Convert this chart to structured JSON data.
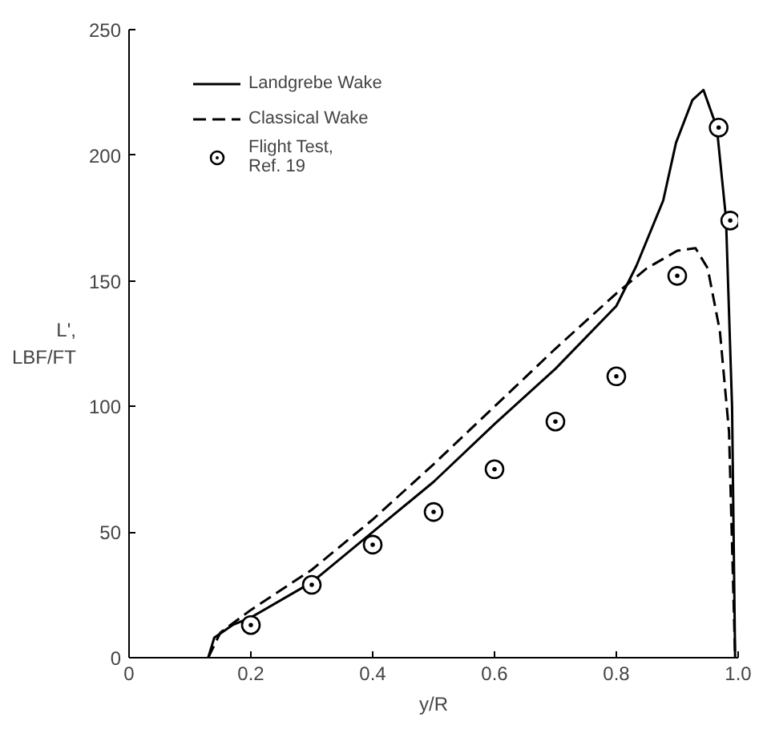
{
  "chart_data": {
    "type": "line",
    "xlabel": "y/R",
    "ylabel": "L',\nLBF/FT",
    "xlim": [
      0,
      1.0
    ],
    "ylim": [
      0,
      250
    ],
    "xticks": [
      0,
      0.2,
      0.4,
      0.6,
      0.8,
      {
        "value": 1.0,
        "label": "1.0"
      }
    ],
    "yticks": [
      0,
      50,
      100,
      150,
      200,
      250
    ],
    "grid": false,
    "legend": "top left",
    "series": [
      {
        "name": "Landgrebe Wake",
        "line_style": "solid",
        "color": "#000000",
        "x": [
          0.13,
          0.14,
          0.17,
          0.2,
          0.3,
          0.4,
          0.5,
          0.6,
          0.7,
          0.8,
          0.833,
          0.877,
          0.898,
          0.925,
          0.943,
          0.965,
          0.98,
          0.99,
          0.995
        ],
        "values": [
          0,
          8,
          13,
          16,
          30,
          50,
          70,
          93,
          115,
          140,
          156,
          182,
          205,
          222,
          226,
          211,
          175,
          100,
          0
        ]
      },
      {
        "name": "Classical Wake",
        "line_style": "dashed",
        "color": "#000000",
        "x": [
          0.13,
          0.15,
          0.2,
          0.3,
          0.4,
          0.5,
          0.6,
          0.7,
          0.8,
          0.85,
          0.9,
          0.93,
          0.95,
          0.97,
          0.985,
          0.995
        ],
        "values": [
          0,
          10,
          19,
          35,
          55,
          77,
          100,
          123,
          145,
          155,
          162,
          163,
          155,
          130,
          90,
          0
        ]
      },
      {
        "name": "Flight Test,\nRef. 19",
        "type": "scatter",
        "marker": "circle",
        "color": "#000000",
        "x": [
          0.2,
          0.3,
          0.4,
          0.5,
          0.6,
          0.7,
          0.8,
          0.9,
          0.968,
          0.987
        ],
        "values": [
          13,
          29,
          45,
          58,
          75,
          94,
          112,
          152,
          211,
          174
        ]
      }
    ]
  }
}
